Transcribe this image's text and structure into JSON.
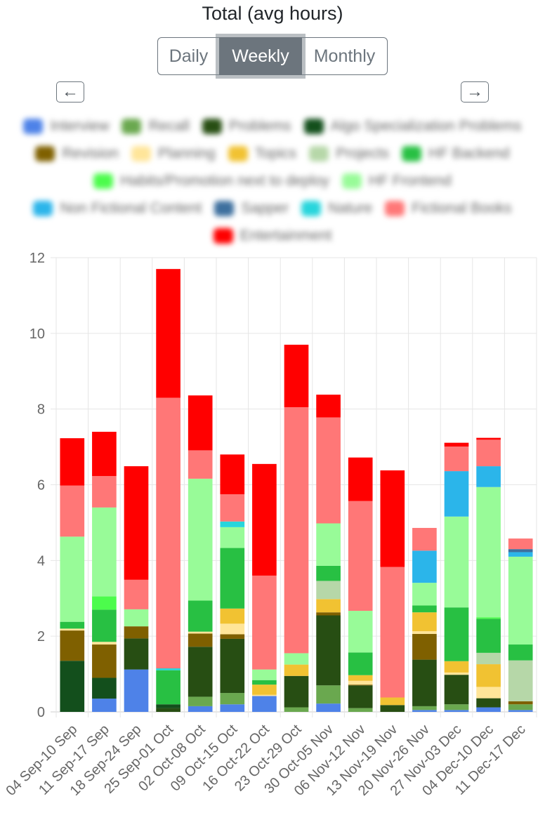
{
  "title": "Total (avg hours)",
  "period_buttons": {
    "daily": "Daily",
    "weekly": "Weekly",
    "monthly": "Monthly",
    "active": "Weekly"
  },
  "nav": {
    "prev_icon": "arrow-left-icon",
    "next_icon": "arrow-right-icon",
    "prev": "←",
    "next": "→"
  },
  "legend_rows": [
    [
      "Interview",
      "Recall",
      "Problems",
      "Algo Specialization Problems"
    ],
    [
      "Revision",
      "Planning",
      "Topics",
      "Projects",
      "HF Backend"
    ],
    [
      "Habits/Promotion next to deploy",
      "HF Frontend"
    ],
    [
      "Non Fictional Content",
      "Sapper",
      "Nature",
      "Fictional Books"
    ],
    [
      "Entertainment"
    ]
  ],
  "chart_data": {
    "type": "bar",
    "stacked": true,
    "title": "",
    "xlabel": "",
    "ylabel": "",
    "ylim": [
      0,
      12
    ],
    "yticks": [
      0,
      2,
      4,
      6,
      8,
      10,
      12
    ],
    "grid": true,
    "legend_position": "top",
    "categories": [
      "04 Sep-10 Sep",
      "11 Sep-17 Sep",
      "18 Sep-24 Sep",
      "25 Sep-01 Oct",
      "02 Oct-08 Oct",
      "09 Oct-15 Oct",
      "16 Oct-22 Oct",
      "23 Oct-29 Oct",
      "30 Oct-05 Nov",
      "06 Nov-12 Nov",
      "13 Nov-19 Nov",
      "20 Nov-26 Nov",
      "27 Nov-03 Dec",
      "04 Dec-10 Dec",
      "11 Dec-17 Dec"
    ],
    "series": [
      {
        "name": "Interview",
        "color": "#4e82e8",
        "values": [
          0,
          0.35,
          1.12,
          0,
          0.15,
          0.2,
          0.42,
          0,
          0.22,
          0,
          0,
          0.05,
          0.05,
          0.12,
          0.05
        ]
      },
      {
        "name": "Recall",
        "color": "#6aa84f",
        "values": [
          0,
          0,
          0,
          0,
          0.25,
          0.3,
          0,
          0.12,
          0.48,
          0.1,
          0,
          0.1,
          0.15,
          0,
          0.15
        ]
      },
      {
        "name": "Problems",
        "color": "#274e13",
        "values": [
          0,
          0,
          0.82,
          0.1,
          1.32,
          1.43,
          0,
          0.83,
          1.85,
          0.6,
          0.18,
          1.23,
          0.78,
          0.24,
          0
        ]
      },
      {
        "name": "Algo Specialization Problems",
        "color": "#134f1c",
        "values": [
          1.35,
          0.55,
          0,
          0.1,
          0,
          0,
          0,
          0,
          0,
          0,
          0,
          0,
          0,
          0,
          0
        ]
      },
      {
        "name": "Revision",
        "color": "#7f6000",
        "values": [
          0.8,
          0.88,
          0.32,
          0,
          0.35,
          0.12,
          0,
          0,
          0.08,
          0.02,
          0,
          0.68,
          0,
          0,
          0.08
        ]
      },
      {
        "name": "Planning",
        "color": "#ffe599",
        "values": [
          0.05,
          0.07,
          0,
          0,
          0.05,
          0.28,
          0.03,
          0,
          0,
          0.1,
          0,
          0.07,
          0.06,
          0.3,
          0
        ]
      },
      {
        "name": "Topics",
        "color": "#f1c232",
        "values": [
          0,
          0,
          0,
          0,
          0,
          0.4,
          0.27,
          0.3,
          0.35,
          0.15,
          0.2,
          0.5,
          0.3,
          0.6,
          0
        ]
      },
      {
        "name": "Projects",
        "color": "#b6d7a8",
        "values": [
          0,
          0,
          0,
          0,
          0,
          0,
          0,
          0,
          0.48,
          0,
          0,
          0,
          0,
          0.3,
          1.08
        ]
      },
      {
        "name": "HF Backend",
        "color": "#28c043",
        "values": [
          0.18,
          0.85,
          0,
          0.9,
          0.82,
          1.6,
          0.12,
          0,
          0.4,
          0.6,
          0,
          0.18,
          1.42,
          0.9,
          0.42
        ]
      },
      {
        "name": "Habits/Promotion next to deploy",
        "color": "#4cfc4c",
        "values": [
          0,
          0.35,
          0,
          0,
          0,
          0,
          0,
          0,
          0,
          0,
          0,
          0,
          0,
          0.04,
          0
        ]
      },
      {
        "name": "HF Frontend",
        "color": "#98fb98",
        "values": [
          2.25,
          2.35,
          0.45,
          0,
          3.22,
          0.55,
          0.28,
          0.3,
          1.12,
          1.1,
          0,
          0.6,
          2.4,
          3.44,
          2.32
        ]
      },
      {
        "name": "Non Fictional Content",
        "color": "#2bb5ea",
        "values": [
          0,
          0,
          0,
          0,
          0,
          0,
          0,
          0,
          0,
          0,
          0,
          0.85,
          1.2,
          0.55,
          0.12
        ]
      },
      {
        "name": "Sapper",
        "color": "#3d6f9e",
        "values": [
          0,
          0,
          0,
          0,
          0,
          0,
          0,
          0,
          0,
          0,
          0,
          0,
          0,
          0,
          0.08
        ]
      },
      {
        "name": "Nature",
        "color": "#27d5dc",
        "values": [
          0,
          0,
          0,
          0.05,
          0,
          0.15,
          0,
          0,
          0,
          0,
          0,
          0,
          0,
          0,
          0
        ]
      },
      {
        "name": "Fictional Books",
        "color": "#ff7777",
        "values": [
          1.35,
          0.83,
          0.78,
          7.15,
          0.75,
          0.72,
          2.48,
          6.5,
          2.8,
          2.9,
          3.45,
          0.6,
          0.65,
          0.7,
          0.28
        ]
      },
      {
        "name": "Entertainment",
        "color": "#ff0000",
        "values": [
          1.25,
          1.17,
          3.0,
          3.4,
          1.45,
          1.05,
          2.95,
          1.65,
          0.6,
          1.15,
          2.55,
          0,
          0.1,
          0.05,
          0
        ]
      }
    ]
  }
}
